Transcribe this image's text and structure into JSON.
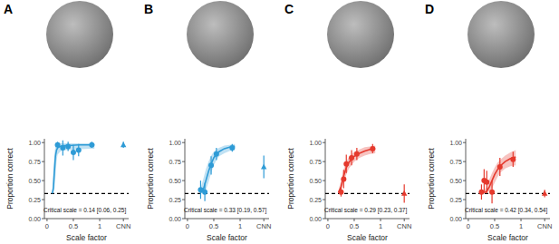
{
  "chart_data": [
    {
      "type": "scatter",
      "label": "A",
      "color": "#2e9bd6",
      "xlabel": "Scale factor",
      "ylabel": "Proportion correct",
      "xlim": [
        -0.05,
        1.55
      ],
      "ylim": [
        0,
        1.05
      ],
      "xticks": [
        0,
        0.5,
        1,
        {
          "value": 1.45,
          "label": "CNN"
        }
      ],
      "yticks": [
        {
          "value": 0,
          "label": "0.00"
        },
        {
          "value": 0.25,
          "label": "0.25"
        },
        {
          "value": 0.5,
          "label": "0.50"
        },
        {
          "value": 0.75,
          "label": "0.75"
        },
        {
          "value": 1,
          "label": "1.00"
        }
      ],
      "chance": 0.33,
      "annotation": "Critical scale = 0.14 [0.06, 0.25]",
      "x": [
        0.2,
        0.3,
        0.4,
        0.5,
        0.6,
        0.85
      ],
      "values": [
        0.97,
        0.93,
        0.95,
        0.87,
        0.9,
        0.97
      ],
      "error": [
        0.04,
        0.1,
        0.06,
        0.1,
        0.08,
        0.04
      ],
      "fit_x": [
        0.1,
        0.12,
        0.14,
        0.16,
        0.18,
        0.2,
        0.25,
        0.3,
        0.4,
        0.6,
        0.8,
        0.9
      ],
      "fit_values": [
        0.33,
        0.4,
        0.62,
        0.82,
        0.9,
        0.93,
        0.95,
        0.96,
        0.96,
        0.97,
        0.97,
        0.97
      ],
      "fit_lower": [
        0.33,
        0.34,
        0.38,
        0.55,
        0.75,
        0.84,
        0.88,
        0.9,
        0.9,
        0.91,
        0.92,
        0.92
      ],
      "fit_upper": [
        0.36,
        0.62,
        0.86,
        0.95,
        0.98,
        0.99,
        0.99,
        0.99,
        0.99,
        0.99,
        0.99,
        0.99
      ],
      "cnn_x": 1.45,
      "cnn_value": 0.97,
      "cnn_error": 0.04
    },
    {
      "type": "scatter",
      "label": "B",
      "color": "#2e9bd6",
      "xlabel": "Scale factor",
      "ylabel": "Proportion correct",
      "xlim": [
        -0.05,
        1.55
      ],
      "ylim": [
        0,
        1.05
      ],
      "xticks": [
        0,
        0.5,
        1,
        {
          "value": 1.45,
          "label": "CNN"
        }
      ],
      "yticks": [
        {
          "value": 0,
          "label": "0.00"
        },
        {
          "value": 0.25,
          "label": "0.25"
        },
        {
          "value": 0.5,
          "label": "0.50"
        },
        {
          "value": 0.75,
          "label": "0.75"
        },
        {
          "value": 1,
          "label": "1.00"
        }
      ],
      "chance": 0.33,
      "annotation": "Critical scale = 0.33 [0.19, 0.57]",
      "x": [
        0.25,
        0.33,
        0.45,
        0.55,
        0.85
      ],
      "values": [
        0.38,
        0.35,
        0.7,
        0.85,
        0.93
      ],
      "error": [
        0.12,
        0.12,
        0.12,
        0.08,
        0.05
      ],
      "fit_x": [
        0.25,
        0.3,
        0.35,
        0.4,
        0.45,
        0.5,
        0.55,
        0.6,
        0.7,
        0.8,
        0.9
      ],
      "fit_values": [
        0.34,
        0.38,
        0.5,
        0.62,
        0.72,
        0.8,
        0.85,
        0.88,
        0.92,
        0.94,
        0.95
      ],
      "fit_lower": [
        0.33,
        0.34,
        0.38,
        0.48,
        0.6,
        0.7,
        0.77,
        0.82,
        0.86,
        0.89,
        0.9
      ],
      "fit_upper": [
        0.4,
        0.52,
        0.65,
        0.75,
        0.83,
        0.88,
        0.91,
        0.93,
        0.96,
        0.97,
        0.98
      ],
      "cnn_x": 1.45,
      "cnn_value": 0.68,
      "cnn_error": 0.15
    },
    {
      "type": "scatter",
      "label": "C",
      "color": "#e5392d",
      "xlabel": "Scale factor",
      "ylabel": "Proportion correct",
      "xlim": [
        -0.05,
        1.55
      ],
      "ylim": [
        0,
        1.05
      ],
      "xticks": [
        0,
        0.5,
        1,
        {
          "value": 1.45,
          "label": "CNN"
        }
      ],
      "yticks": [
        {
          "value": 0,
          "label": "0.00"
        },
        {
          "value": 0.25,
          "label": "0.25"
        },
        {
          "value": 0.5,
          "label": "0.50"
        },
        {
          "value": 0.75,
          "label": "0.75"
        },
        {
          "value": 1,
          "label": "1.00"
        }
      ],
      "chance": 0.33,
      "annotation": "Critical scale = 0.29 [0.23, 0.37]",
      "x": [
        0.25,
        0.3,
        0.35,
        0.45,
        0.55,
        0.85
      ],
      "values": [
        0.35,
        0.52,
        0.72,
        0.8,
        0.85,
        0.92
      ],
      "error": [
        0.06,
        0.12,
        0.12,
        0.1,
        0.08,
        0.06
      ],
      "fit_x": [
        0.2,
        0.25,
        0.3,
        0.35,
        0.4,
        0.5,
        0.6,
        0.7,
        0.8,
        0.9
      ],
      "fit_values": [
        0.34,
        0.42,
        0.56,
        0.67,
        0.74,
        0.82,
        0.86,
        0.89,
        0.91,
        0.92
      ],
      "fit_lower": [
        0.33,
        0.36,
        0.47,
        0.58,
        0.66,
        0.75,
        0.8,
        0.83,
        0.85,
        0.86
      ],
      "fit_upper": [
        0.37,
        0.5,
        0.65,
        0.75,
        0.81,
        0.88,
        0.91,
        0.94,
        0.95,
        0.96
      ],
      "cnn_x": 1.45,
      "cnn_value": 0.33,
      "cnn_error": 0.12
    },
    {
      "type": "scatter",
      "label": "D",
      "color": "#e5392d",
      "xlabel": "Scale factor",
      "ylabel": "Proportion correct",
      "xlim": [
        -0.05,
        1.55
      ],
      "ylim": [
        0,
        1.05
      ],
      "xticks": [
        0,
        0.5,
        1,
        {
          "value": 1.45,
          "label": "CNN"
        }
      ],
      "yticks": [
        {
          "value": 0,
          "label": "0.00"
        },
        {
          "value": 0.25,
          "label": "0.25"
        },
        {
          "value": 0.5,
          "label": "0.50"
        },
        {
          "value": 0.75,
          "label": "0.75"
        },
        {
          "value": 1,
          "label": "1.00"
        }
      ],
      "chance": 0.33,
      "annotation": "Critical scale = 0.42 [0.34, 0.54]",
      "x": [
        0.25,
        0.3,
        0.35,
        0.45,
        0.6,
        0.85
      ],
      "values": [
        0.35,
        0.5,
        0.48,
        0.35,
        0.68,
        0.78
      ],
      "error": [
        0.1,
        0.15,
        0.15,
        0.15,
        0.12,
        0.1
      ],
      "fit_x": [
        0.3,
        0.35,
        0.4,
        0.45,
        0.5,
        0.55,
        0.6,
        0.7,
        0.8,
        0.9
      ],
      "fit_values": [
        0.34,
        0.36,
        0.42,
        0.5,
        0.58,
        0.64,
        0.69,
        0.75,
        0.79,
        0.81
      ],
      "fit_lower": [
        0.33,
        0.34,
        0.36,
        0.4,
        0.47,
        0.54,
        0.6,
        0.66,
        0.69,
        0.7
      ],
      "fit_upper": [
        0.36,
        0.42,
        0.52,
        0.6,
        0.67,
        0.73,
        0.77,
        0.83,
        0.87,
        0.9
      ],
      "cnn_x": 1.45,
      "cnn_value": 0.33,
      "cnn_error": 0.05
    }
  ]
}
